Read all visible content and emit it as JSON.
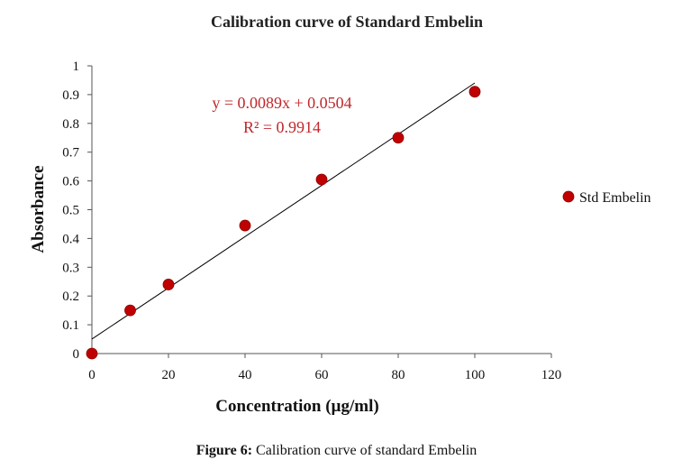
{
  "chart_data": {
    "type": "scatter",
    "title": "Calibration curve of Standard Embelin",
    "xlabel": "Concentration (µg/ml)",
    "ylabel": "Absorbance",
    "xlim": [
      0,
      120
    ],
    "ylim": [
      0,
      1
    ],
    "x_ticks": [
      "0",
      "20",
      "40",
      "60",
      "80",
      "100",
      "120"
    ],
    "y_ticks": [
      "0",
      "0.1",
      "0.2",
      "0.3",
      "0.4",
      "0.5",
      "0.6",
      "0.7",
      "0.8",
      "0.9",
      "1"
    ],
    "grid": false,
    "legend_position": "right",
    "series": [
      {
        "name": "Std Embelin",
        "color": "#c00000",
        "x": [
          0,
          10,
          20,
          40,
          60,
          80,
          100
        ],
        "y": [
          0.0,
          0.15,
          0.24,
          0.445,
          0.605,
          0.75,
          0.91
        ]
      }
    ],
    "trendline": {
      "slope": 0.0089,
      "intercept": 0.0504,
      "x_range": [
        0,
        100
      ],
      "equation": "y = 0.0089x + 0.0504",
      "r_squared": "R² = 0.9914",
      "color": "#000000"
    }
  },
  "caption": {
    "label": "Figure 6:",
    "text": " Calibration curve of standard Embelin"
  }
}
